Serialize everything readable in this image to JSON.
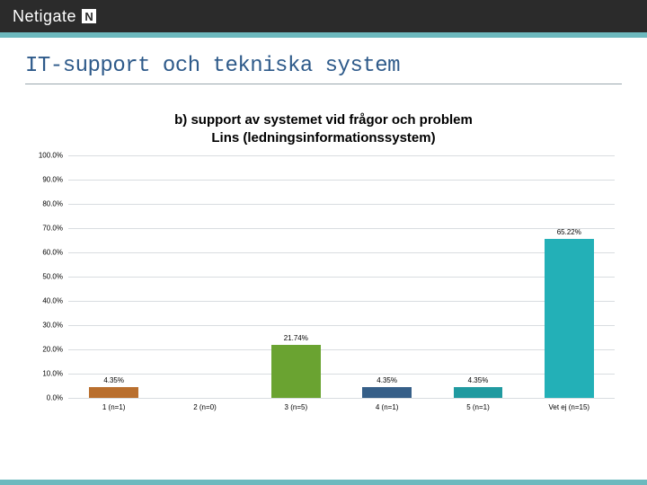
{
  "brand": {
    "name": "Netigate",
    "mark": "N"
  },
  "slide": {
    "title": "IT-support och tekniska system",
    "title_color": "#2e5a8a",
    "underline_color": "#9aa7ad",
    "accent_color": "#6db9be"
  },
  "chart": {
    "type": "bar",
    "title_line1": "b) support av systemet vid frågor och problem",
    "title_line2": "Lins (ledningsinformationssystem)",
    "title_fontsize": 15,
    "background_color": "#ffffff",
    "grid_color": "#d9dde0",
    "ylim": [
      0,
      100
    ],
    "yticks": [
      {
        "v": 0,
        "label": "0.0%"
      },
      {
        "v": 10,
        "label": "10.0%"
      },
      {
        "v": 20,
        "label": "20.0%"
      },
      {
        "v": 30,
        "label": "30.0%"
      },
      {
        "v": 40,
        "label": "40.0%"
      },
      {
        "v": 50,
        "label": "50.0%"
      },
      {
        "v": 60,
        "label": "60.0%"
      },
      {
        "v": 70,
        "label": "70.0%"
      },
      {
        "v": 80,
        "label": "80.0%"
      },
      {
        "v": 90,
        "label": "90.0%"
      },
      {
        "v": 100,
        "label": "100.0%"
      }
    ],
    "tick_fontsize": 8,
    "bar_width_pct": 54,
    "categories": [
      {
        "label": "1 (n=1)",
        "value": 4.35,
        "value_label": "4.35%",
        "color": "#b96f2e"
      },
      {
        "label": "2 (n=0)",
        "value": 0,
        "value_label": "",
        "color": "#b96f2e"
      },
      {
        "label": "3 (n=5)",
        "value": 21.74,
        "value_label": "21.74%",
        "color": "#6aa331"
      },
      {
        "label": "4 (n=1)",
        "value": 4.35,
        "value_label": "4.35%",
        "color": "#365f88"
      },
      {
        "label": "5 (n=1)",
        "value": 4.35,
        "value_label": "4.35%",
        "color": "#209aa0"
      },
      {
        "label": "Vet ej (n=15)",
        "value": 65.22,
        "value_label": "65.22%",
        "color": "#23b0b7"
      }
    ]
  }
}
